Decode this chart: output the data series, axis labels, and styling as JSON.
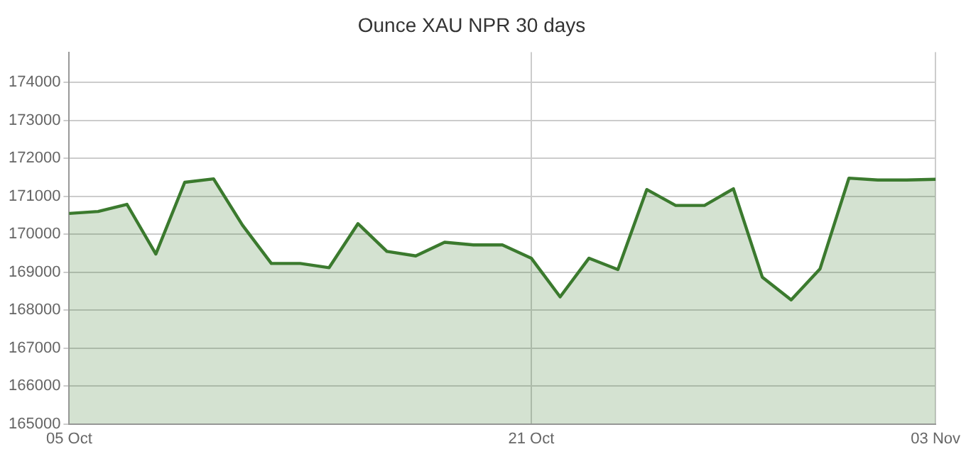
{
  "chart_data": {
    "type": "area",
    "title": "Ounce XAU NPR 30 days",
    "categories": [
      "05 Oct",
      null,
      null,
      null,
      null,
      null,
      null,
      null,
      null,
      null,
      null,
      null,
      null,
      null,
      null,
      null,
      "21 Oct",
      null,
      null,
      null,
      null,
      null,
      null,
      null,
      null,
      null,
      null,
      null,
      null,
      null,
      "03 Nov"
    ],
    "series": [
      {
        "color": "#3b7a2e",
        "values": [
          170550,
          170600,
          170790,
          169480,
          171370,
          171460,
          170240,
          169230,
          169230,
          169120,
          170280,
          169550,
          169430,
          169790,
          169720,
          169720,
          169370,
          168350,
          169370,
          169070,
          171180,
          170760,
          170760,
          171200,
          168870,
          168270,
          169090,
          171480,
          171430,
          171430,
          171450
        ]
      }
    ],
    "ylim": [
      165000,
      174800
    ],
    "yticks": [
      165000,
      166000,
      167000,
      168000,
      169000,
      170000,
      171000,
      172000,
      173000,
      174000
    ],
    "grid": true,
    "legend": false,
    "marker": "none",
    "line_style": "solid"
  }
}
